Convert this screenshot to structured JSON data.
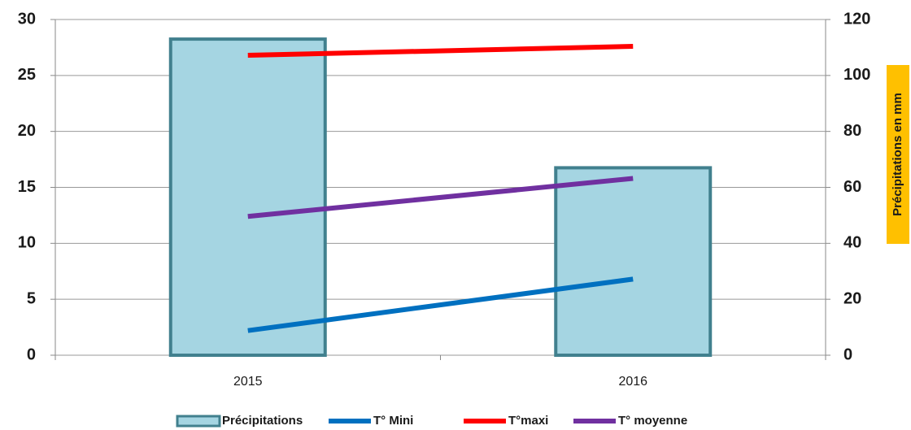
{
  "chart_data": {
    "type": "combo",
    "categories": [
      "2015",
      "2016"
    ],
    "series": [
      {
        "name": "Précipitations",
        "type": "bar",
        "axis": "y2",
        "color": "#a5d5e2",
        "edgecolor": "#41808e",
        "values": [
          113,
          67
        ]
      },
      {
        "name": "T° Mini",
        "type": "line",
        "color": "#0070c0",
        "values": [
          2.2,
          6.8
        ]
      },
      {
        "name": "T°maxi",
        "type": "line",
        "color": "#ff0000",
        "values": [
          26.8,
          27.6
        ]
      },
      {
        "name": "T° moyenne",
        "type": "line",
        "color": "#7030a0",
        "values": [
          12.4,
          15.8
        ]
      }
    ],
    "ylim": [
      0,
      30
    ],
    "yticks": [
      0,
      5,
      10,
      15,
      20,
      25,
      30
    ],
    "y2lim": [
      0,
      120
    ],
    "y2ticks": [
      0,
      20,
      40,
      60,
      80,
      100,
      120
    ],
    "y2label": "Précipitations en mm",
    "grid": true,
    "legend": "bottom"
  }
}
